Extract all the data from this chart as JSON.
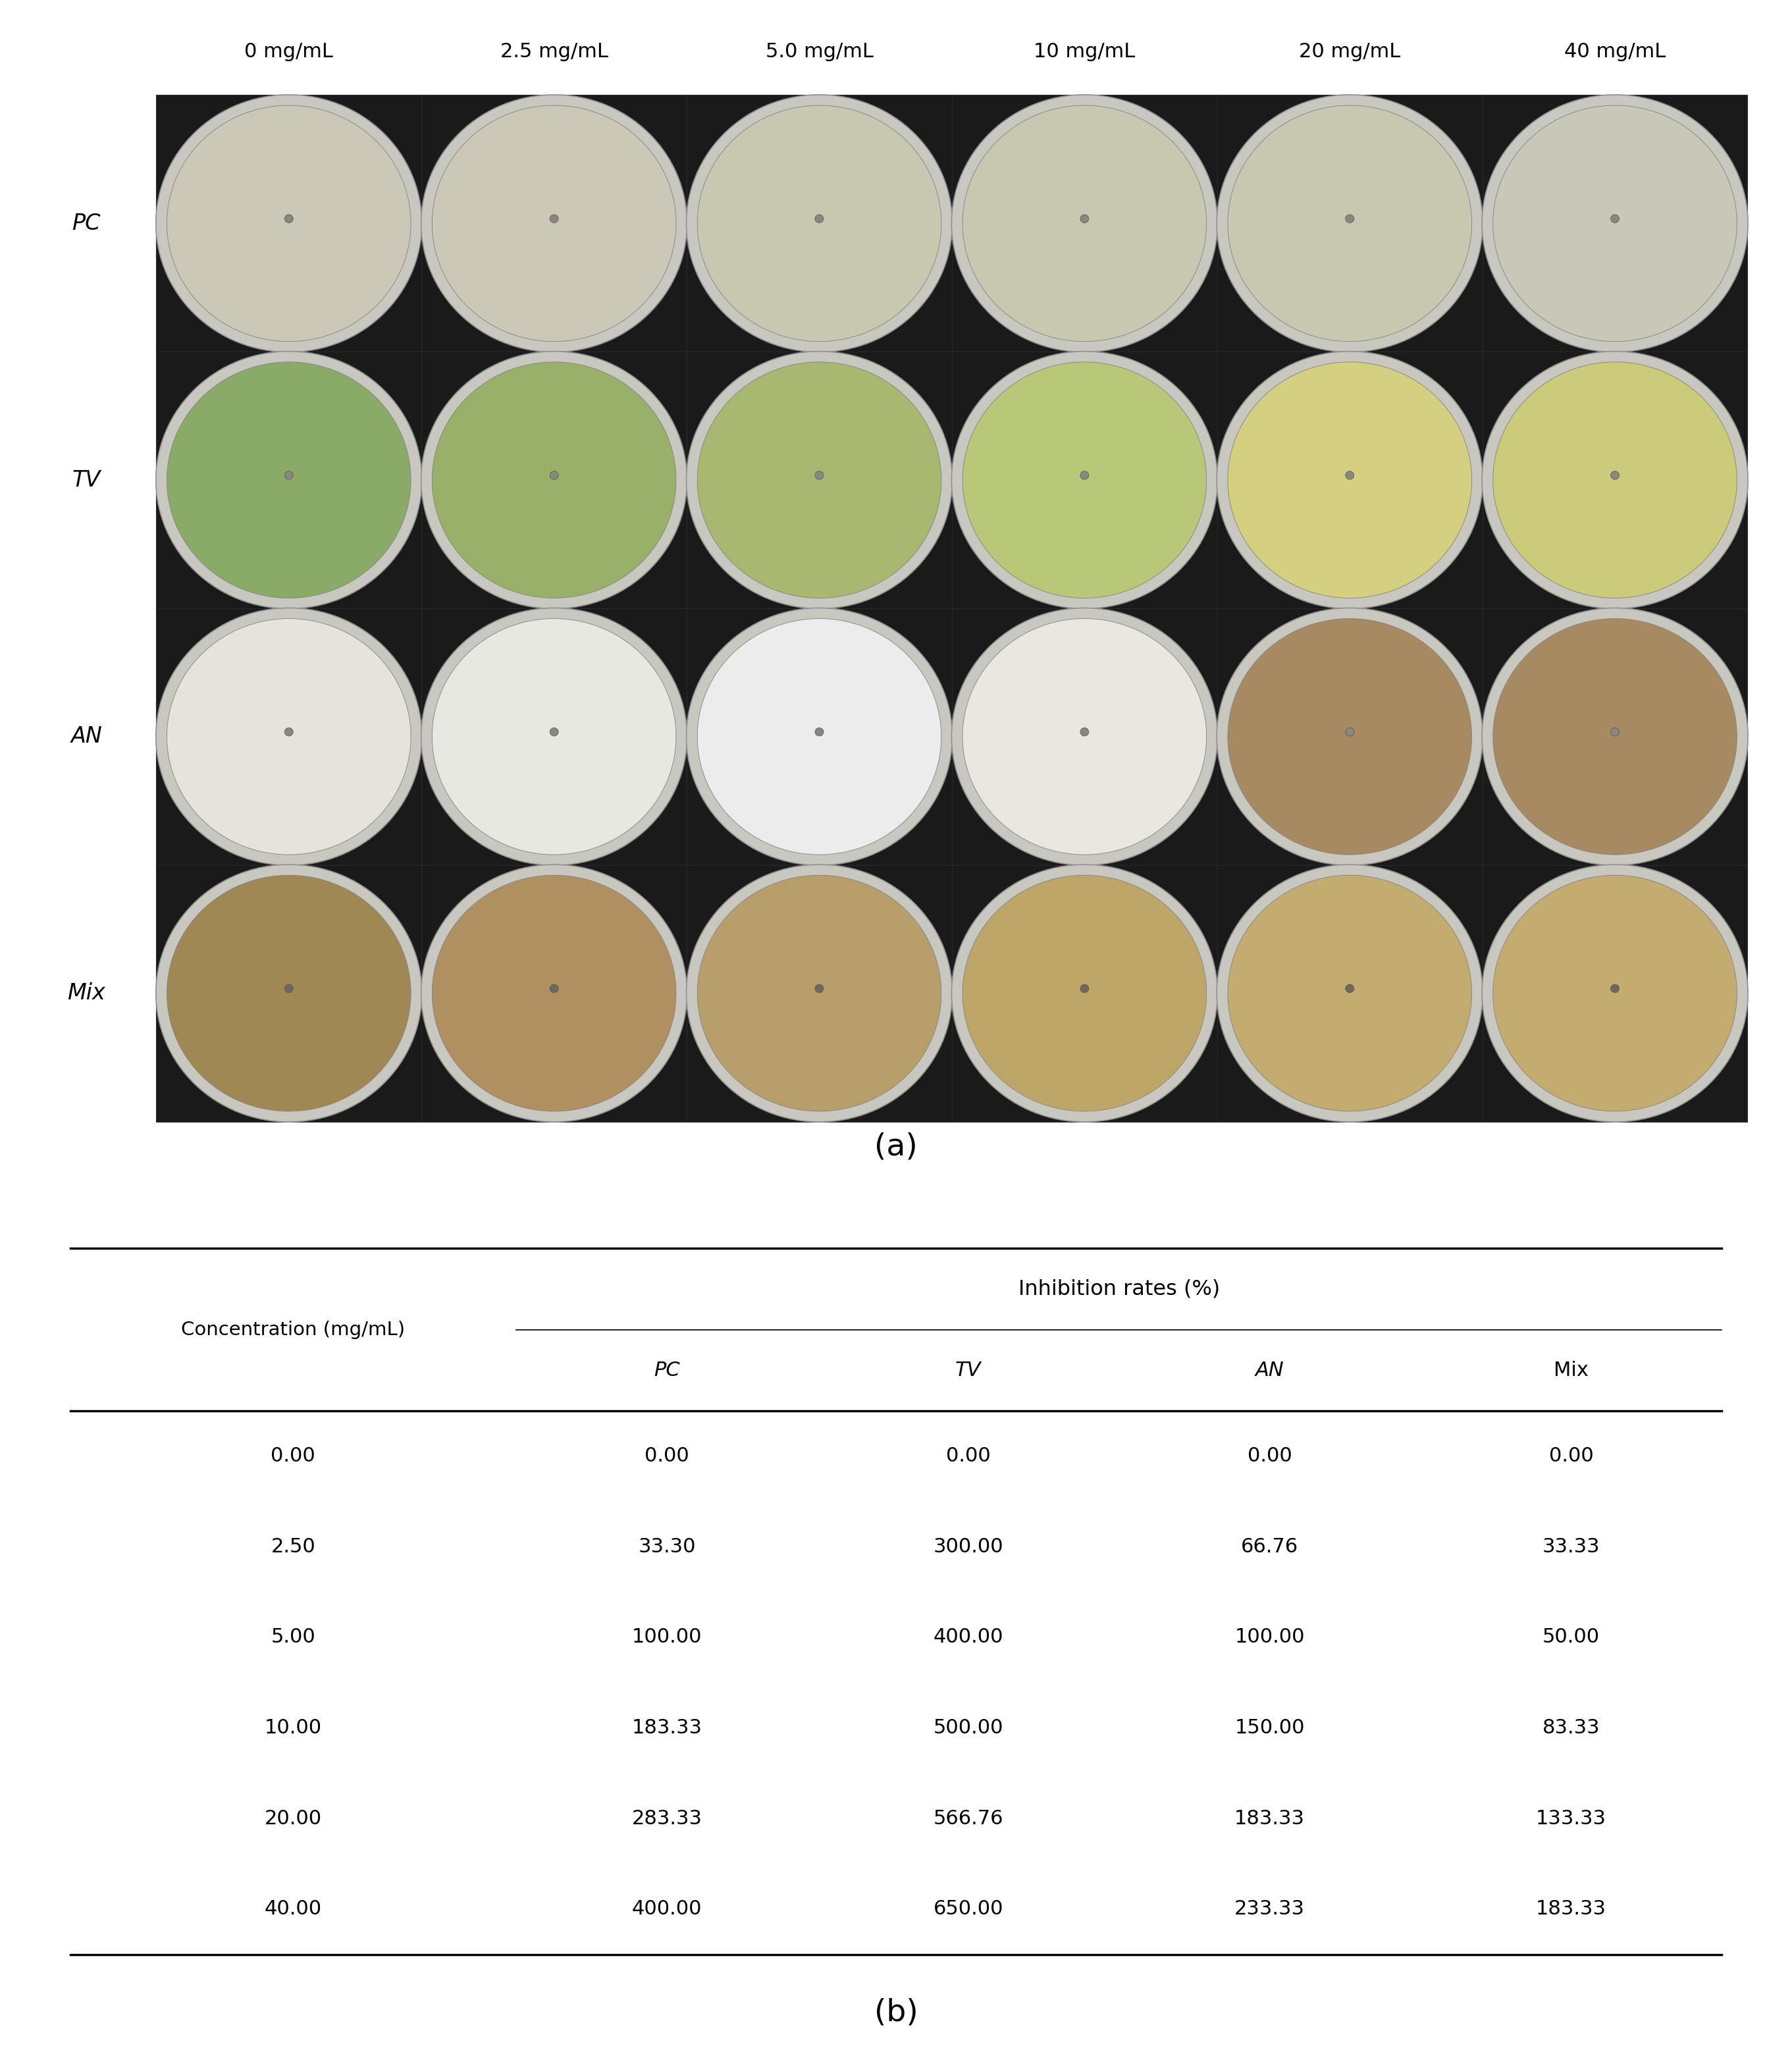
{
  "col_labels": [
    "0 mg/mL",
    "2.5 mg/mL",
    "5.0 mg/mL",
    "10 mg/mL",
    "20 mg/mL",
    "40 mg/mL"
  ],
  "row_labels": [
    "PC",
    "TV",
    "AN",
    "Mix"
  ],
  "label_a": "(a)",
  "label_b": "(b)",
  "table_header_main": "Inhibition rates (%)",
  "table_data": [
    [
      "0.00",
      "0.00",
      "0.00",
      "0.00",
      "0.00"
    ],
    [
      "2.50",
      "33.30",
      "300.00",
      "66.76",
      "33.33"
    ],
    [
      "5.00",
      "100.00",
      "400.00",
      "100.00",
      "50.00"
    ],
    [
      "10.00",
      "183.33",
      "500.00",
      "150.00",
      "83.33"
    ],
    [
      "20.00",
      "283.33",
      "566.76",
      "183.33",
      "133.33"
    ],
    [
      "40.00",
      "400.00",
      "650.00",
      "233.33",
      "183.33"
    ]
  ],
  "bg_color": "#ffffff",
  "text_color": "#000000",
  "dark_bg": "#1a1a1a",
  "figure_width": 27.22,
  "figure_height": 31.26,
  "row_plate_colors": {
    "PC": [
      "#ccc8b8",
      "#ccc8b8",
      "#c8c8b0",
      "#c8c8b0",
      "#c8c8b0",
      "#c8c8b8"
    ],
    "TV": [
      "#8aaa68",
      "#98b068",
      "#a8b870",
      "#b8c878",
      "#d4d080",
      "#cccb7a"
    ],
    "AN": [
      "#e4e4da",
      "#e8e8e2",
      "#ececec",
      "#e8e8e0",
      "#a88a62",
      "#a88a62"
    ],
    "Mix": [
      "#a08855",
      "#b09060",
      "#b89e6a",
      "#bea668",
      "#c4ac70",
      "#c4ac70"
    ]
  }
}
